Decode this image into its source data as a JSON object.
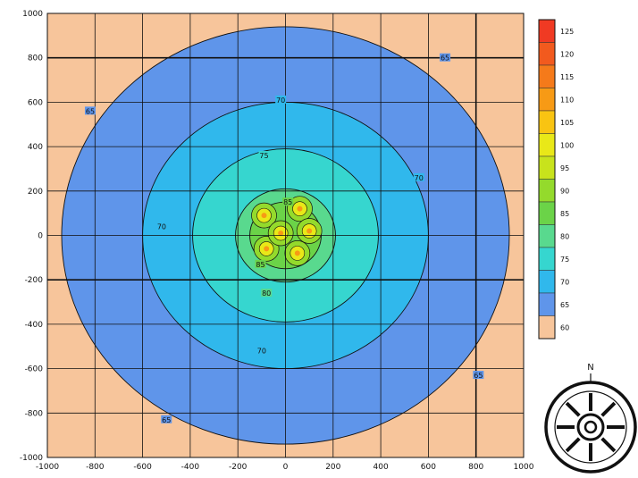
{
  "chart_data": {
    "type": "heatmap",
    "subtype": "contour",
    "title": "",
    "xlabel": "",
    "ylabel": "",
    "xlim": [
      -1000,
      1000
    ],
    "ylim": [
      -1000,
      1000
    ],
    "x_ticks": [
      "-1000",
      "-800",
      "-600",
      "-400",
      "-200",
      "0",
      "200",
      "400",
      "600",
      "800",
      "1000"
    ],
    "y_ticks": [
      "1000",
      "800",
      "600",
      "400",
      "200",
      "0",
      "-200",
      "-400",
      "-600",
      "-800",
      "-1000"
    ],
    "grid": true,
    "grid_spacing": 200,
    "emphasized_lines": {
      "x": [
        800
      ],
      "y": [
        800,
        -200
      ]
    },
    "legend_position": "right",
    "legend": {
      "levels": [
        "125",
        "120",
        "115",
        "110",
        "105",
        "100",
        "95",
        "90",
        "85",
        "80",
        "75",
        "70",
        "65",
        "60"
      ],
      "colors": [
        "#f03a23",
        "#f25a1e",
        "#f57a1a",
        "#f79a15",
        "#f9c412",
        "#e9e818",
        "#c8e31c",
        "#94da2c",
        "#6bd348",
        "#59d98e",
        "#36d6cf",
        "#30b8ec",
        "#5f95ea",
        "#f7c59b"
      ]
    },
    "contours": [
      {
        "level": 65,
        "radius": 940,
        "color": "#5f95ea",
        "labels": [
          {
            "text": "65",
            "x": 670,
            "y": 800
          },
          {
            "text": "65",
            "x": -820,
            "y": 560
          },
          {
            "text": "65",
            "x": -500,
            "y": -830
          },
          {
            "text": "65",
            "x": 810,
            "y": -630
          }
        ]
      },
      {
        "level": 70,
        "radius": 600,
        "color": "#30b8ec",
        "labels": [
          {
            "text": "70",
            "x": -20,
            "y": 610
          },
          {
            "text": "70",
            "x": -520,
            "y": 40
          },
          {
            "text": "70",
            "x": 560,
            "y": 260
          },
          {
            "text": "70",
            "x": -100,
            "y": -520
          }
        ]
      },
      {
        "level": 75,
        "radius": 390,
        "color": "#36d6cf",
        "labels": [
          {
            "text": "75",
            "x": -90,
            "y": 360
          }
        ]
      },
      {
        "level": 80,
        "radius": 210,
        "color": "#59d98e",
        "labels": [
          {
            "text": "80",
            "x": -80,
            "y": -260
          }
        ]
      },
      {
        "level": 85,
        "radius": 150,
        "color": "#6bd348",
        "labels": [
          {
            "text": "85",
            "x": 10,
            "y": 150
          },
          {
            "text": "85",
            "x": -105,
            "y": -130
          }
        ]
      }
    ],
    "hotspots": [
      {
        "x": -90,
        "y": 90
      },
      {
        "x": 60,
        "y": 120
      },
      {
        "x": 100,
        "y": 20
      },
      {
        "x": -80,
        "y": -60
      },
      {
        "x": 50,
        "y": -80
      },
      {
        "x": -20,
        "y": 10
      }
    ],
    "compass": {
      "north_label": "N"
    }
  }
}
